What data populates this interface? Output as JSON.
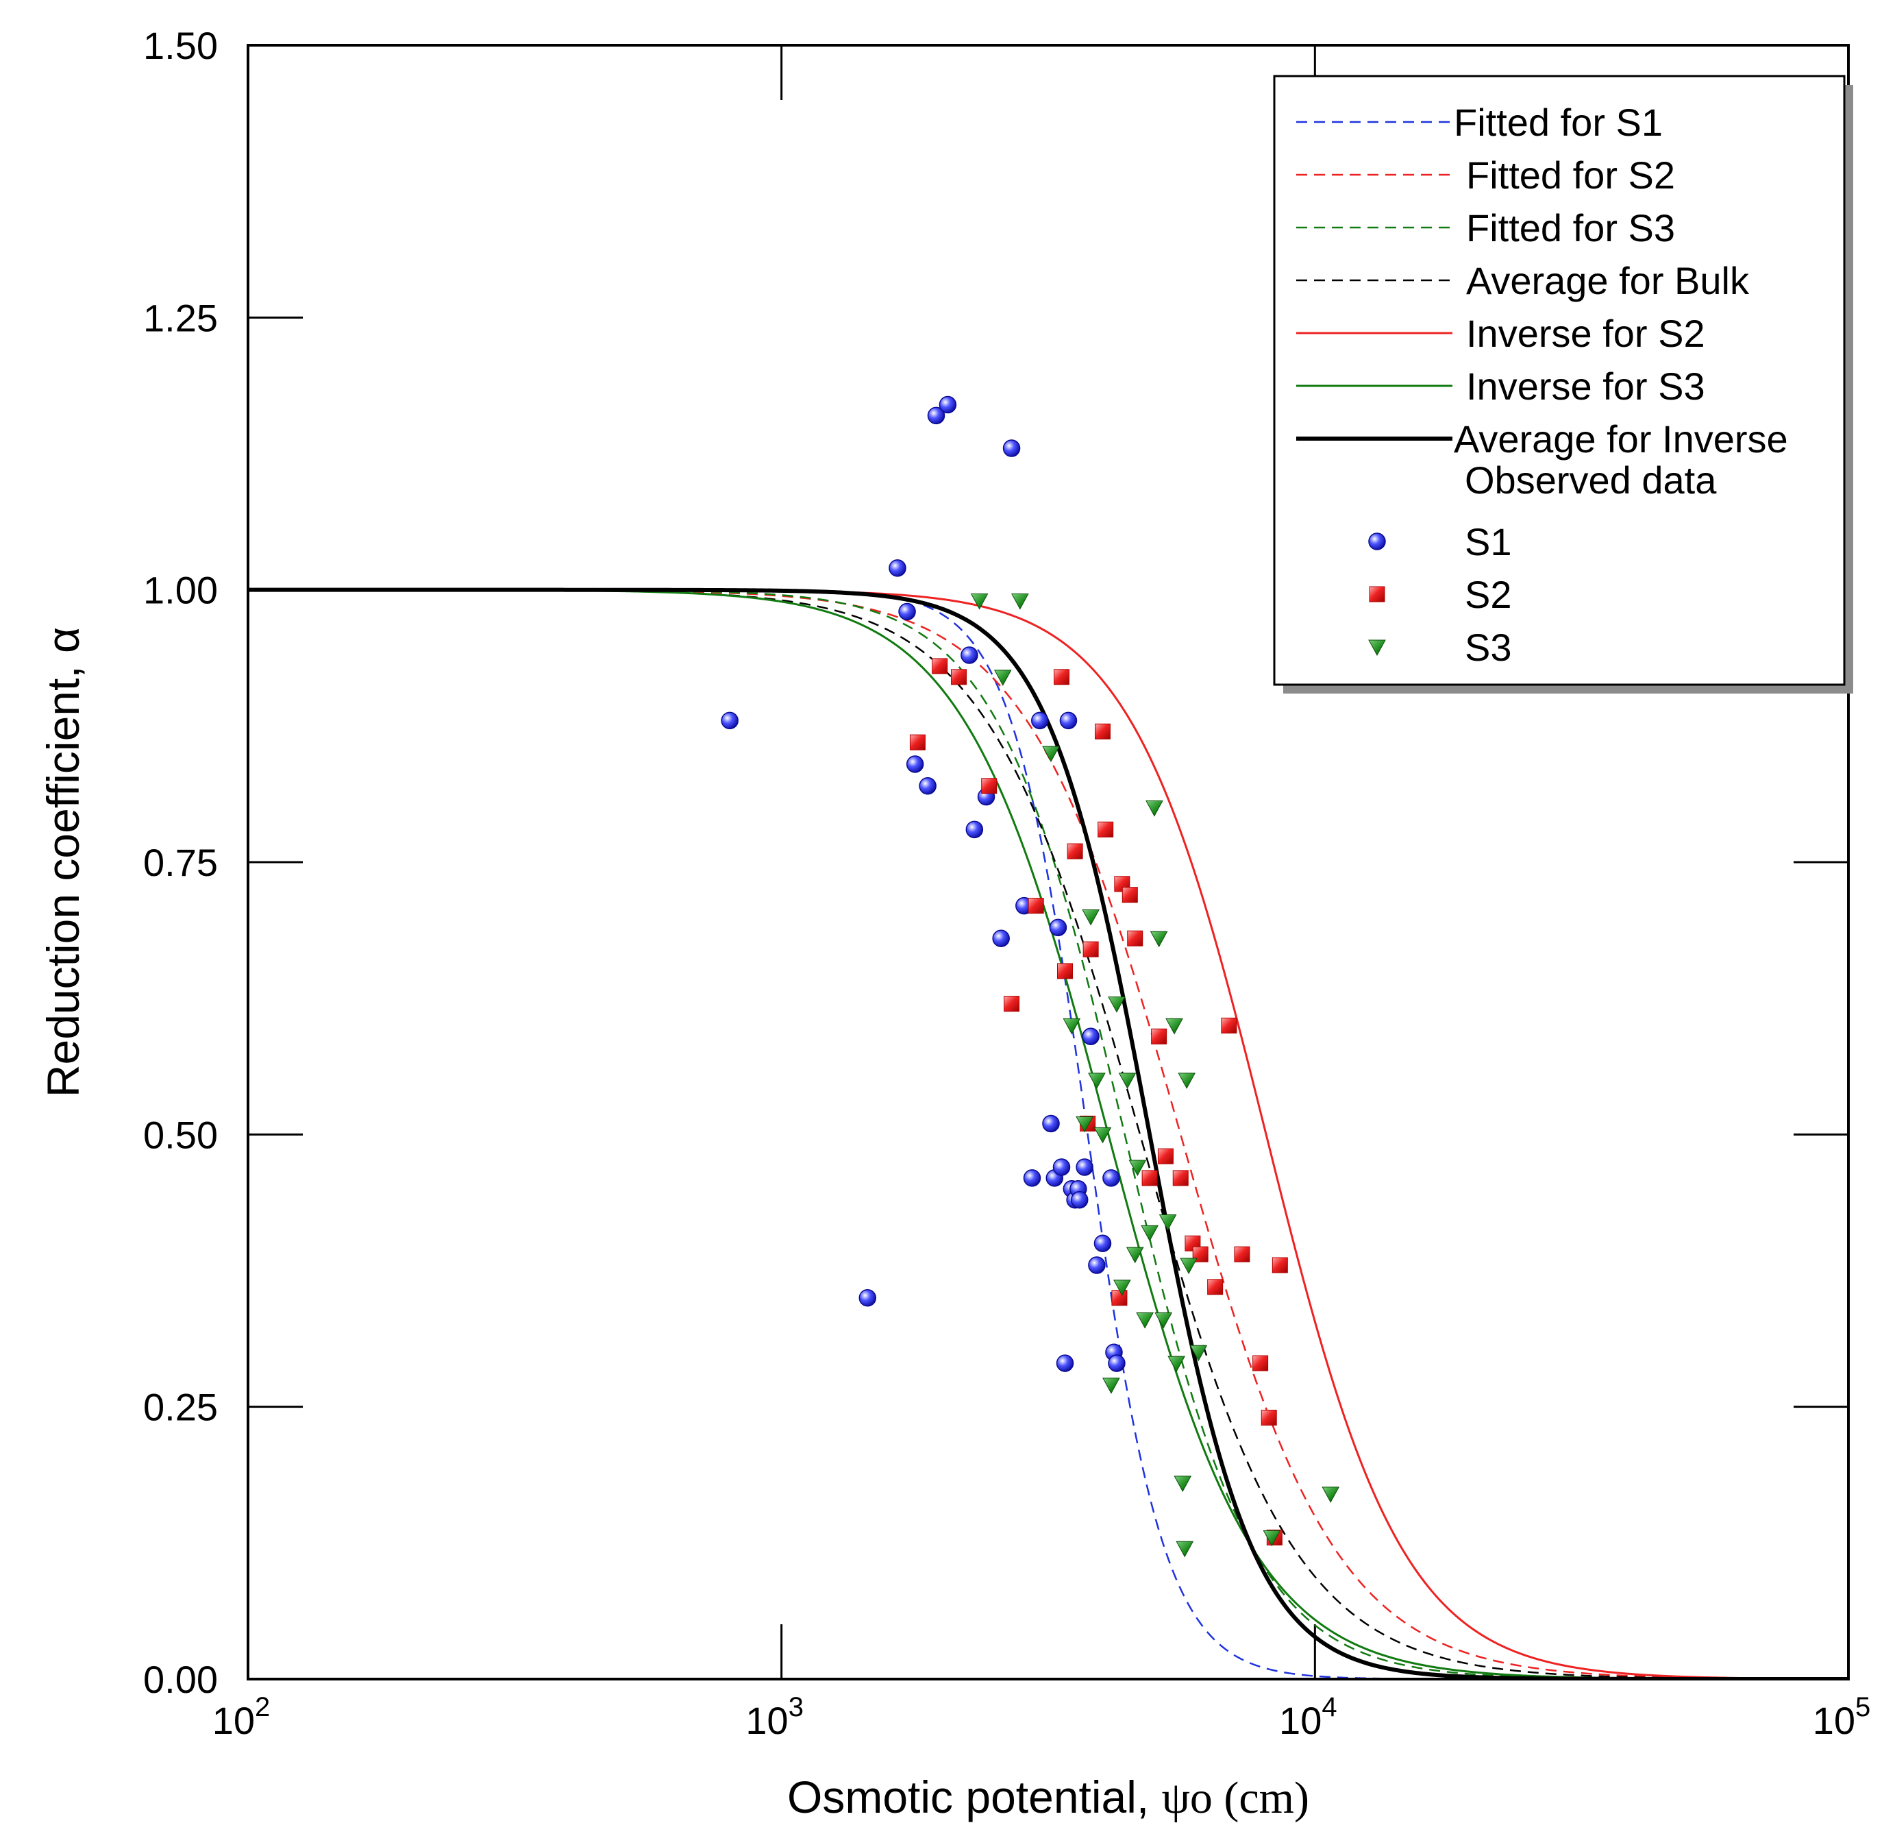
{
  "chart_data": {
    "type": "scatter",
    "xscale": "log",
    "xlim": [
      100,
      100000
    ],
    "ylim": [
      0,
      1.5
    ],
    "ylabel": "Reduction coefficient, α",
    "xlabel_prefix": "Osmotic potential, ",
    "xlabel_symbol": "ψo",
    "xlabel_unit": " (cm)",
    "x_ticks": [
      {
        "value": 100,
        "base": "10",
        "exp": "2"
      },
      {
        "value": 1000,
        "base": "10",
        "exp": "3"
      },
      {
        "value": 10000,
        "base": "10",
        "exp": "4"
      },
      {
        "value": 100000,
        "base": "10",
        "exp": "5"
      }
    ],
    "y_ticks": [
      {
        "value": 0,
        "label": "0.00"
      },
      {
        "value": 0.25,
        "label": "0.25"
      },
      {
        "value": 0.5,
        "label": "0.50"
      },
      {
        "value": 0.75,
        "label": "0.75"
      },
      {
        "value": 1.0,
        "label": "1.00"
      },
      {
        "value": 1.25,
        "label": "1.25"
      },
      {
        "value": 1.5,
        "label": "1.50"
      }
    ],
    "curves": [
      {
        "name": "Fitted for S1",
        "color": "#1f33e0",
        "dash": true,
        "width": 2.5,
        "h50": 3750,
        "p": 6.0
      },
      {
        "name": "Fitted for S2",
        "color": "#ee2222",
        "dash": true,
        "width": 2.5,
        "h50": 5600,
        "p": 3.0
      },
      {
        "name": "Fitted for S3",
        "color": "#117a11",
        "dash": true,
        "width": 2.5,
        "h50": 4400,
        "p": 3.6
      },
      {
        "name": "Average for Bulk",
        "color": "#000000",
        "dash": true,
        "width": 2.5,
        "h50": 4700,
        "p": 3.0
      },
      {
        "name": "Inverse for S2",
        "color": "#ee2222",
        "dash": false,
        "width": 3,
        "h50": 8100,
        "p": 3.4
      },
      {
        "name": "Inverse for S3",
        "color": "#117a11",
        "dash": false,
        "width": 3,
        "h50": 4100,
        "p": 3.2
      },
      {
        "name": "Average for Inverse",
        "color": "#000000",
        "dash": false,
        "width": 6,
        "h50": 4900,
        "p": 4.5
      }
    ],
    "legend_observed_title": "Observed data",
    "series": [
      {
        "name": "S1",
        "marker": "circle",
        "color": "#2a2ae6",
        "points": [
          [
            800,
            0.88
          ],
          [
            1450,
            0.35
          ],
          [
            1650,
            1.02
          ],
          [
            1720,
            0.98
          ],
          [
            1780,
            0.84
          ],
          [
            1880,
            0.82
          ],
          [
            1950,
            1.16
          ],
          [
            2050,
            1.17
          ],
          [
            2250,
            0.94
          ],
          [
            2300,
            0.78
          ],
          [
            2420,
            0.81
          ],
          [
            2580,
            0.68
          ],
          [
            2700,
            1.13
          ],
          [
            2850,
            0.71
          ],
          [
            2950,
            0.46
          ],
          [
            3050,
            0.88
          ],
          [
            3200,
            0.51
          ],
          [
            3250,
            0.46
          ],
          [
            3300,
            0.69
          ],
          [
            3350,
            0.47
          ],
          [
            3400,
            0.29
          ],
          [
            3450,
            0.88
          ],
          [
            3500,
            0.45
          ],
          [
            3550,
            0.44
          ],
          [
            3600,
            0.45
          ],
          [
            3620,
            0.44
          ],
          [
            3700,
            0.47
          ],
          [
            3800,
            0.59
          ],
          [
            3900,
            0.38
          ],
          [
            4000,
            0.4
          ],
          [
            4150,
            0.46
          ],
          [
            4200,
            0.3
          ],
          [
            4250,
            0.29
          ]
        ]
      },
      {
        "name": "S2",
        "marker": "square",
        "color": "#e82020",
        "points": [
          [
            1800,
            0.86
          ],
          [
            1980,
            0.93
          ],
          [
            2150,
            0.92
          ],
          [
            2450,
            0.82
          ],
          [
            2700,
            0.62
          ],
          [
            3000,
            0.71
          ],
          [
            3350,
            0.92
          ],
          [
            3400,
            0.65
          ],
          [
            3550,
            0.76
          ],
          [
            3750,
            0.51
          ],
          [
            3800,
            0.67
          ],
          [
            4000,
            0.87
          ],
          [
            4050,
            0.78
          ],
          [
            4300,
            0.35
          ],
          [
            4350,
            0.73
          ],
          [
            4500,
            0.72
          ],
          [
            4600,
            0.68
          ],
          [
            4900,
            0.46
          ],
          [
            5100,
            0.59
          ],
          [
            5250,
            0.48
          ],
          [
            5600,
            0.46
          ],
          [
            5900,
            0.4
          ],
          [
            6100,
            0.39
          ],
          [
            6500,
            0.36
          ],
          [
            6900,
            0.6
          ],
          [
            7300,
            0.39
          ],
          [
            7900,
            0.29
          ],
          [
            8200,
            0.24
          ],
          [
            8400,
            0.13
          ],
          [
            8600,
            0.38
          ]
        ]
      },
      {
        "name": "S3",
        "marker": "triangle",
        "color": "#1a8a1a",
        "points": [
          [
            2350,
            0.99
          ],
          [
            2600,
            0.92
          ],
          [
            2800,
            0.99
          ],
          [
            3200,
            0.85
          ],
          [
            3500,
            0.6
          ],
          [
            3700,
            0.51
          ],
          [
            3800,
            0.7
          ],
          [
            3900,
            0.55
          ],
          [
            4000,
            0.5
          ],
          [
            4150,
            0.27
          ],
          [
            4250,
            0.62
          ],
          [
            4350,
            0.36
          ],
          [
            4450,
            0.55
          ],
          [
            4600,
            0.39
          ],
          [
            4650,
            0.47
          ],
          [
            4800,
            0.33
          ],
          [
            4900,
            0.41
          ],
          [
            5000,
            0.8
          ],
          [
            5100,
            0.68
          ],
          [
            5200,
            0.33
          ],
          [
            5300,
            0.42
          ],
          [
            5450,
            0.6
          ],
          [
            5500,
            0.29
          ],
          [
            5650,
            0.18
          ],
          [
            5700,
            0.12
          ],
          [
            5750,
            0.55
          ],
          [
            5800,
            0.38
          ],
          [
            6050,
            0.3
          ],
          [
            8300,
            0.13
          ],
          [
            10700,
            0.17
          ]
        ]
      }
    ]
  }
}
